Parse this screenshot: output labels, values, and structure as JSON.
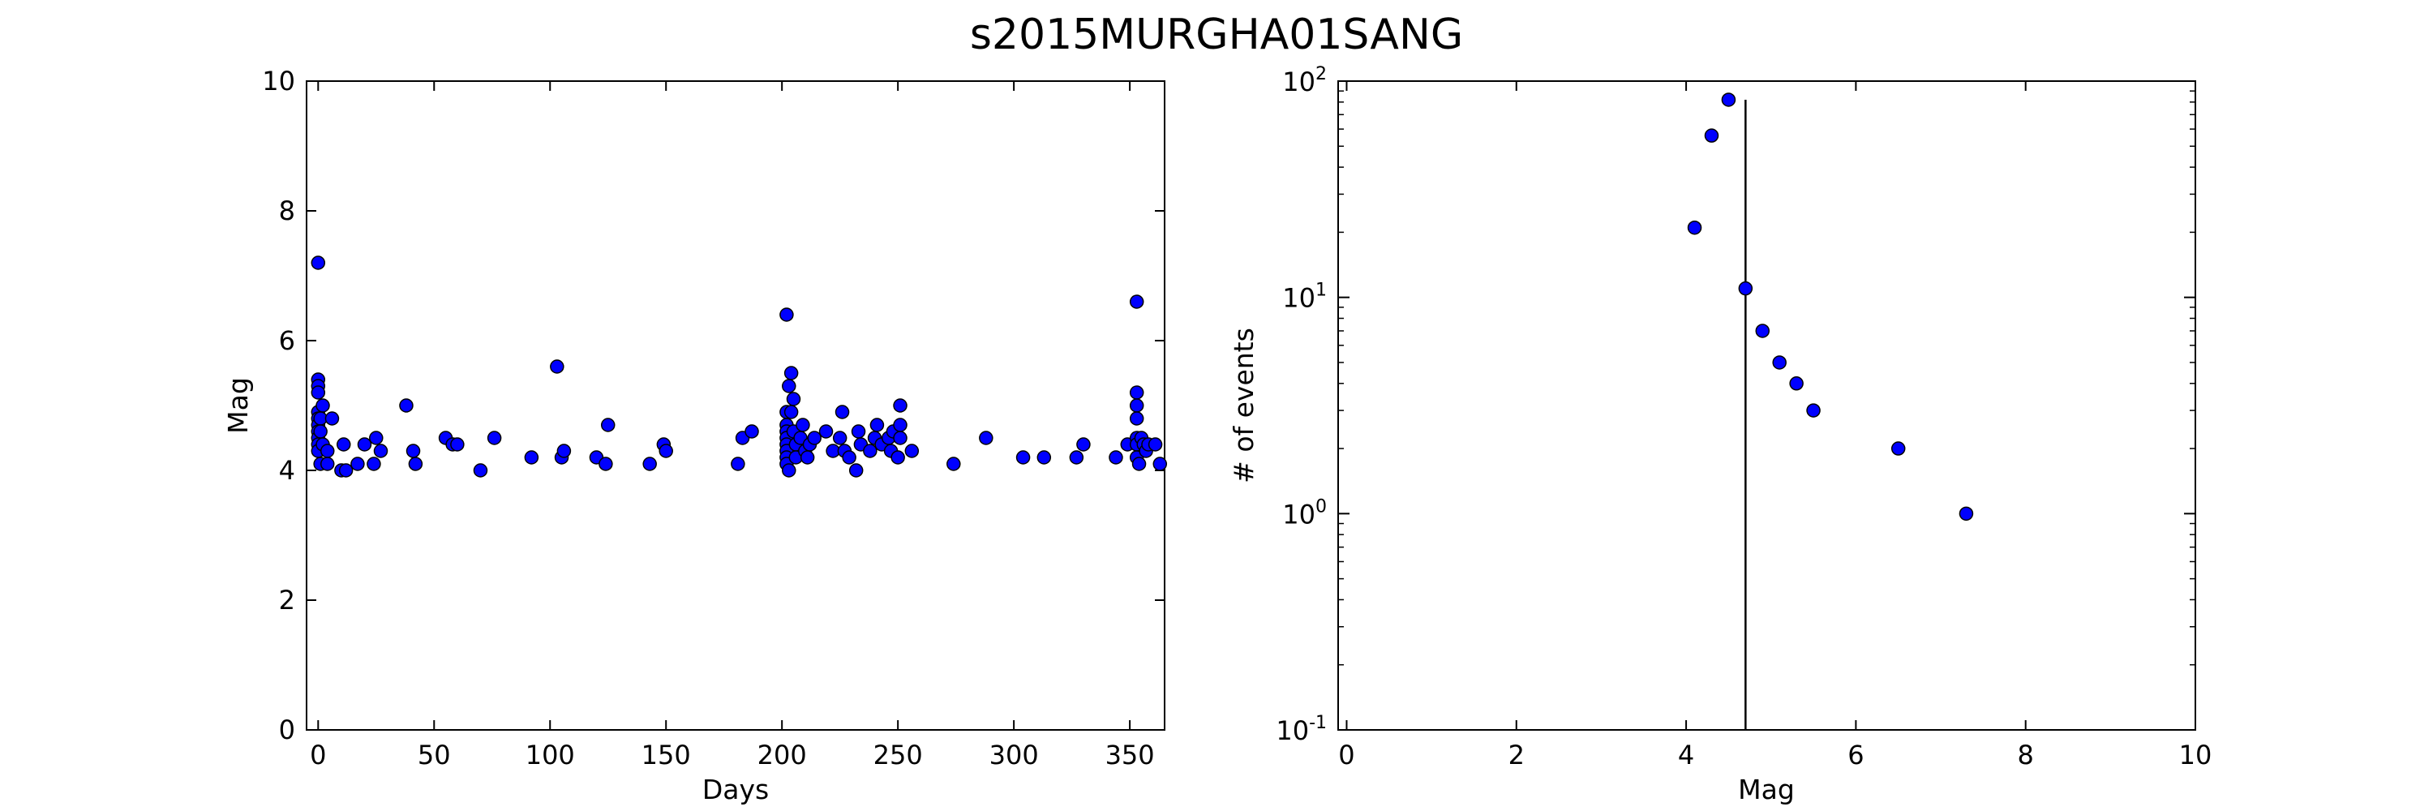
{
  "figure": {
    "title": "s2015MURGHA01SANG"
  },
  "chart_data": [
    {
      "type": "scatter",
      "xlabel": "Days",
      "ylabel": "Mag",
      "xlim": [
        -5,
        365
      ],
      "ylim": [
        0,
        10
      ],
      "xticks": [
        0,
        50,
        100,
        150,
        200,
        250,
        300,
        350
      ],
      "yticks": [
        0,
        2,
        4,
        6,
        8,
        10
      ],
      "grid": false,
      "marker_color": "#0000ff",
      "points": [
        [
          0,
          7.2
        ],
        [
          0,
          5.4
        ],
        [
          0,
          5.3
        ],
        [
          0,
          5.2
        ],
        [
          0,
          4.9
        ],
        [
          0,
          4.8
        ],
        [
          0,
          4.7
        ],
        [
          0,
          4.6
        ],
        [
          0,
          4.5
        ],
        [
          0,
          4.4
        ],
        [
          0,
          4.3
        ],
        [
          1,
          4.8
        ],
        [
          1,
          4.6
        ],
        [
          1,
          4.1
        ],
        [
          2,
          5.0
        ],
        [
          2,
          4.4
        ],
        [
          4,
          4.3
        ],
        [
          4,
          4.1
        ],
        [
          6,
          4.8
        ],
        [
          10,
          4.0
        ],
        [
          11,
          4.4
        ],
        [
          12,
          4.0
        ],
        [
          17,
          4.1
        ],
        [
          20,
          4.4
        ],
        [
          24,
          4.1
        ],
        [
          25,
          4.5
        ],
        [
          27,
          4.3
        ],
        [
          38,
          5.0
        ],
        [
          41,
          4.3
        ],
        [
          42,
          4.1
        ],
        [
          55,
          4.5
        ],
        [
          58,
          4.4
        ],
        [
          60,
          4.4
        ],
        [
          70,
          4.0
        ],
        [
          76,
          4.5
        ],
        [
          92,
          4.2
        ],
        [
          103,
          5.6
        ],
        [
          105,
          4.2
        ],
        [
          106,
          4.3
        ],
        [
          120,
          4.2
        ],
        [
          124,
          4.1
        ],
        [
          125,
          4.7
        ],
        [
          143,
          4.1
        ],
        [
          149,
          4.4
        ],
        [
          150,
          4.3
        ],
        [
          181,
          4.1
        ],
        [
          183,
          4.5
        ],
        [
          187,
          4.6
        ],
        [
          202,
          6.4
        ],
        [
          202,
          4.9
        ],
        [
          202,
          4.7
        ],
        [
          202,
          4.6
        ],
        [
          202,
          4.5
        ],
        [
          202,
          4.4
        ],
        [
          202,
          4.3
        ],
        [
          202,
          4.2
        ],
        [
          202,
          4.1
        ],
        [
          203,
          5.3
        ],
        [
          203,
          4.0
        ],
        [
          204,
          5.5
        ],
        [
          204,
          4.9
        ],
        [
          205,
          5.1
        ],
        [
          205,
          4.6
        ],
        [
          206,
          4.4
        ],
        [
          206,
          4.2
        ],
        [
          208,
          4.5
        ],
        [
          209,
          4.7
        ],
        [
          210,
          4.3
        ],
        [
          211,
          4.2
        ],
        [
          212,
          4.4
        ],
        [
          214,
          4.5
        ],
        [
          219,
          4.6
        ],
        [
          222,
          4.3
        ],
        [
          225,
          4.5
        ],
        [
          226,
          4.9
        ],
        [
          227,
          4.3
        ],
        [
          229,
          4.2
        ],
        [
          232,
          4.0
        ],
        [
          233,
          4.6
        ],
        [
          234,
          4.4
        ],
        [
          238,
          4.3
        ],
        [
          240,
          4.5
        ],
        [
          241,
          4.7
        ],
        [
          243,
          4.4
        ],
        [
          246,
          4.5
        ],
        [
          247,
          4.3
        ],
        [
          248,
          4.6
        ],
        [
          250,
          4.2
        ],
        [
          251,
          4.5
        ],
        [
          251,
          5.0
        ],
        [
          251,
          4.7
        ],
        [
          256,
          4.3
        ],
        [
          274,
          4.1
        ],
        [
          288,
          4.5
        ],
        [
          304,
          4.2
        ],
        [
          313,
          4.2
        ],
        [
          327,
          4.2
        ],
        [
          330,
          4.4
        ],
        [
          344,
          4.2
        ],
        [
          349,
          4.4
        ],
        [
          353,
          6.6
        ],
        [
          353,
          5.2
        ],
        [
          353,
          5.0
        ],
        [
          353,
          4.8
        ],
        [
          353,
          4.5
        ],
        [
          353,
          4.4
        ],
        [
          353,
          4.2
        ],
        [
          354,
          4.1
        ],
        [
          355,
          4.5
        ],
        [
          356,
          4.4
        ],
        [
          357,
          4.3
        ],
        [
          358,
          4.4
        ],
        [
          361,
          4.4
        ],
        [
          363,
          4.1
        ]
      ]
    },
    {
      "type": "scatter",
      "xlabel": "Mag",
      "ylabel": "# of events",
      "xlim": [
        -0.1,
        10
      ],
      "ylim": [
        0.1,
        100
      ],
      "yscale": "log",
      "xticks": [
        0,
        2,
        4,
        6,
        8,
        10
      ],
      "yticks": [
        {
          "base": "10",
          "exp": "-1",
          "value": 0.1
        },
        {
          "base": "10",
          "exp": "0",
          "value": 1
        },
        {
          "base": "10",
          "exp": "1",
          "value": 10
        },
        {
          "base": "10",
          "exp": "2",
          "value": 100
        }
      ],
      "grid": false,
      "marker_color": "#0000ff",
      "points": [
        [
          4.1,
          21
        ],
        [
          4.3,
          56
        ],
        [
          4.5,
          82
        ],
        [
          4.7,
          11
        ],
        [
          4.9,
          7
        ],
        [
          5.1,
          5
        ],
        [
          5.3,
          4
        ],
        [
          5.5,
          3
        ],
        [
          6.5,
          2
        ],
        [
          7.3,
          1
        ]
      ],
      "vline": {
        "x": 4.7,
        "ymin": 0.1,
        "ymax": 82
      }
    }
  ]
}
